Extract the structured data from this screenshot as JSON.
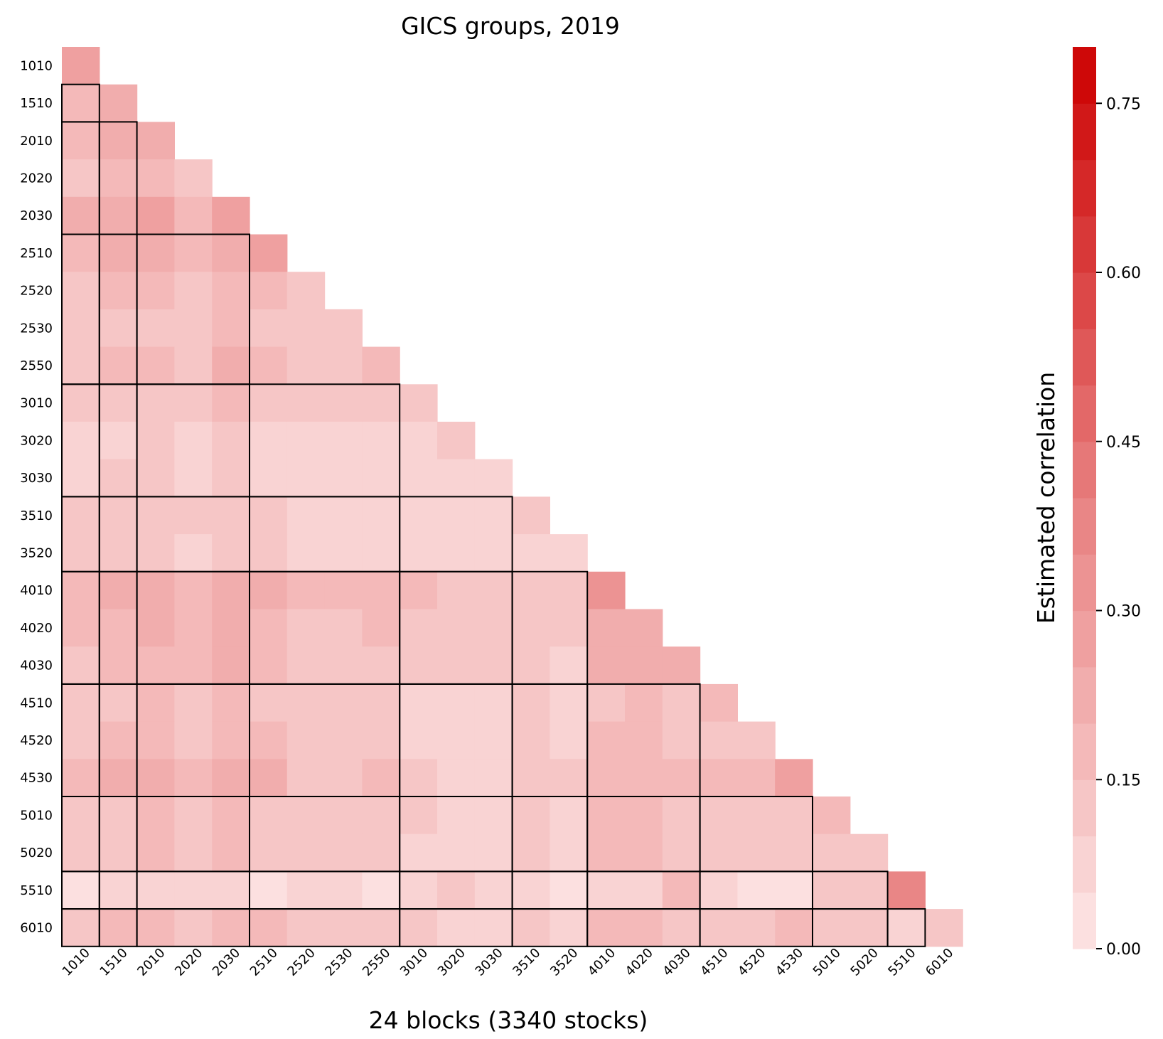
{
  "chart_data": {
    "type": "heatmap",
    "title": "GICS groups, 2019",
    "xlabel": "24 blocks (3340 stocks)",
    "ylabel": "",
    "labels": [
      "1010",
      "1510",
      "2010",
      "2020",
      "2030",
      "2510",
      "2520",
      "2530",
      "2550",
      "3010",
      "3020",
      "3030",
      "3510",
      "3520",
      "4010",
      "4020",
      "4030",
      "4510",
      "4520",
      "4530",
      "5010",
      "5020",
      "5510",
      "6010"
    ],
    "sectors": [
      {
        "start": 0,
        "end": 0
      },
      {
        "start": 1,
        "end": 1
      },
      {
        "start": 2,
        "end": 4
      },
      {
        "start": 5,
        "end": 8
      },
      {
        "start": 9,
        "end": 11
      },
      {
        "start": 12,
        "end": 13
      },
      {
        "start": 14,
        "end": 16
      },
      {
        "start": 17,
        "end": 19
      },
      {
        "start": 20,
        "end": 21
      },
      {
        "start": 22,
        "end": 22
      },
      {
        "start": 23,
        "end": 23
      }
    ],
    "matrix": [
      [
        0.27
      ],
      [
        0.18,
        0.22
      ],
      [
        0.17,
        0.2,
        0.21
      ],
      [
        0.12,
        0.17,
        0.17,
        0.1
      ],
      [
        0.22,
        0.2,
        0.25,
        0.18,
        0.3
      ],
      [
        0.18,
        0.21,
        0.21,
        0.18,
        0.24,
        0.26
      ],
      [
        0.13,
        0.16,
        0.16,
        0.11,
        0.17,
        0.17,
        0.12
      ],
      [
        0.12,
        0.12,
        0.1,
        0.1,
        0.17,
        0.12,
        0.12,
        0.12
      ],
      [
        0.13,
        0.17,
        0.16,
        0.12,
        0.2,
        0.16,
        0.12,
        0.12,
        0.18
      ],
      [
        0.14,
        0.14,
        0.14,
        0.14,
        0.17,
        0.14,
        0.14,
        0.14,
        0.14,
        0.11
      ],
      [
        0.07,
        0.06,
        0.11,
        0.07,
        0.12,
        0.08,
        0.08,
        0.08,
        0.08,
        0.07,
        0.12
      ],
      [
        0.07,
        0.13,
        0.12,
        0.07,
        0.12,
        0.08,
        0.08,
        0.08,
        0.08,
        0.08,
        0.08,
        0.08
      ],
      [
        0.12,
        0.12,
        0.13,
        0.13,
        0.13,
        0.12,
        0.08,
        0.08,
        0.08,
        0.08,
        0.08,
        0.08,
        0.12
      ],
      [
        0.12,
        0.12,
        0.12,
        0.07,
        0.12,
        0.12,
        0.08,
        0.08,
        0.08,
        0.08,
        0.08,
        0.08,
        0.08,
        0.08
      ],
      [
        0.17,
        0.21,
        0.2,
        0.18,
        0.23,
        0.2,
        0.18,
        0.18,
        0.18,
        0.17,
        0.14,
        0.14,
        0.13,
        0.13,
        0.31
      ],
      [
        0.17,
        0.18,
        0.2,
        0.17,
        0.21,
        0.19,
        0.12,
        0.12,
        0.17,
        0.14,
        0.14,
        0.14,
        0.13,
        0.13,
        0.23,
        0.23
      ],
      [
        0.12,
        0.18,
        0.18,
        0.18,
        0.21,
        0.17,
        0.12,
        0.12,
        0.12,
        0.12,
        0.12,
        0.12,
        0.12,
        0.07,
        0.23,
        0.23,
        0.23
      ],
      [
        0.12,
        0.13,
        0.17,
        0.12,
        0.17,
        0.13,
        0.13,
        0.13,
        0.13,
        0.08,
        0.08,
        0.08,
        0.12,
        0.07,
        0.12,
        0.18,
        0.12,
        0.18
      ],
      [
        0.12,
        0.17,
        0.18,
        0.12,
        0.18,
        0.18,
        0.12,
        0.12,
        0.12,
        0.08,
        0.08,
        0.08,
        0.12,
        0.07,
        0.19,
        0.19,
        0.12,
        0.12,
        0.12
      ],
      [
        0.18,
        0.2,
        0.21,
        0.19,
        0.22,
        0.23,
        0.12,
        0.12,
        0.17,
        0.12,
        0.08,
        0.08,
        0.14,
        0.14,
        0.17,
        0.17,
        0.17,
        0.18,
        0.18,
        0.26
      ],
      [
        0.12,
        0.12,
        0.17,
        0.12,
        0.17,
        0.12,
        0.12,
        0.12,
        0.12,
        0.12,
        0.07,
        0.07,
        0.12,
        0.07,
        0.17,
        0.17,
        0.12,
        0.13,
        0.13,
        0.13,
        0.19
      ],
      [
        0.12,
        0.12,
        0.17,
        0.12,
        0.17,
        0.12,
        0.12,
        0.12,
        0.12,
        0.08,
        0.08,
        0.08,
        0.12,
        0.07,
        0.17,
        0.17,
        0.12,
        0.13,
        0.13,
        0.13,
        0.13,
        0.13
      ],
      [
        0.03,
        0.09,
        0.09,
        0.09,
        0.09,
        0.03,
        0.09,
        0.09,
        0.03,
        0.09,
        0.12,
        0.09,
        0.09,
        0.03,
        0.09,
        0.09,
        0.18,
        0.09,
        0.03,
        0.03,
        0.12,
        0.12,
        0.39
      ],
      [
        0.13,
        0.17,
        0.17,
        0.13,
        0.17,
        0.17,
        0.12,
        0.12,
        0.12,
        0.13,
        0.08,
        0.08,
        0.13,
        0.08,
        0.18,
        0.18,
        0.13,
        0.13,
        0.13,
        0.17,
        0.13,
        0.13,
        0.08,
        0.13
      ]
    ],
    "colorbar": {
      "label": "Estimated correlation",
      "min": 0.0,
      "max": 0.8,
      "levels": 16,
      "ticks": [
        "0.00",
        "0.15",
        "0.30",
        "0.45",
        "0.60",
        "0.75"
      ],
      "color_low": "#fde6e6",
      "color_mid": "#e88080",
      "color_high": "#cc0000"
    }
  }
}
